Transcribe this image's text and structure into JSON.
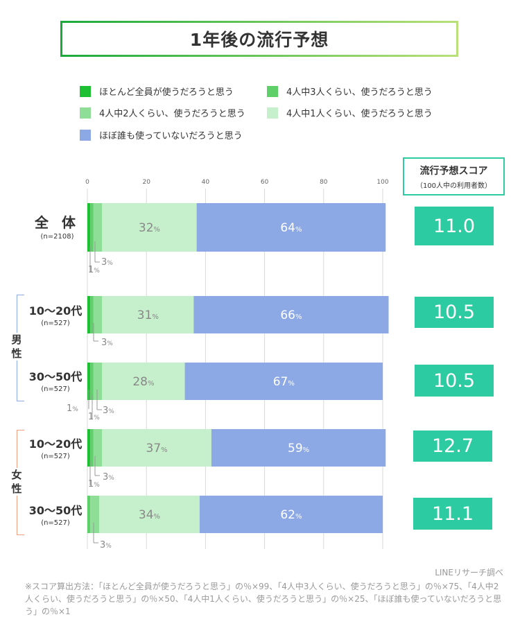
{
  "title": "1年後の流行予想",
  "legend": [
    {
      "label": "ほとんど全員が使うだろうと思う",
      "color": "#1dbf33"
    },
    {
      "label": "4人中3人くらい、使うだろうと思う",
      "color": "#5fcf6a"
    },
    {
      "label": "4人中2人くらい、使うだろうと思う",
      "color": "#8fde98"
    },
    {
      "label": "4人中1人くらい、使うだろうと思う",
      "color": "#c6efcb"
    },
    {
      "label": "ほぼ誰も使っていないだろうと思う",
      "color": "#8ca8e5"
    }
  ],
  "score_header": {
    "title": "流行予想スコア",
    "subtitle": "（100人中の利用者数）"
  },
  "groups": {
    "male": "男\n性",
    "female": "女\n性"
  },
  "rows": [
    {
      "label": "全 体",
      "n": "(n=2108)",
      "score": "11.0"
    },
    {
      "label": "10〜20代",
      "n": "(n=527)",
      "score": "10.5"
    },
    {
      "label": "30〜50代",
      "n": "(n=527)",
      "score": "10.5"
    },
    {
      "label": "10〜20代",
      "n": "(n=527)",
      "score": "12.7"
    },
    {
      "label": "30〜50代",
      "n": "(n=527)",
      "score": "11.1"
    }
  ],
  "chart_data": {
    "type": "bar",
    "orientation": "horizontal",
    "stacked": true,
    "xlim": [
      0,
      100
    ],
    "ticks": [
      "0",
      "20",
      "40",
      "60",
      "80",
      "100"
    ],
    "categories": [
      "全体",
      "男性 10〜20代",
      "男性 30〜50代",
      "女性 10〜20代",
      "女性 30〜50代"
    ],
    "series": [
      {
        "name": "ほとんど全員が使うだろうと思う",
        "values": [
          1,
          1,
          1,
          1,
          0
        ]
      },
      {
        "name": "4人中3人くらい、使うだろうと思う",
        "values": [
          1,
          1,
          1,
          1,
          1
        ]
      },
      {
        "name": "4人中2人くらい、使うだろうと思う",
        "values": [
          3,
          3,
          3,
          3,
          3
        ]
      },
      {
        "name": "4人中1人くらい、使うだろうと思う",
        "values": [
          32,
          31,
          28,
          37,
          34
        ]
      },
      {
        "name": "ほぼ誰も使っていないだろうと思う",
        "values": [
          64,
          66,
          67,
          59,
          62
        ]
      }
    ],
    "data_labels": [
      {
        "row": 0,
        "text": "32",
        "unit": "%",
        "series": 3
      },
      {
        "row": 0,
        "text": "64",
        "unit": "%",
        "series": 4
      },
      {
        "row": 1,
        "text": "31",
        "unit": "%",
        "series": 3
      },
      {
        "row": 1,
        "text": "66",
        "unit": "%",
        "series": 4
      },
      {
        "row": 2,
        "text": "28",
        "unit": "%",
        "series": 3
      },
      {
        "row": 2,
        "text": "67",
        "unit": "%",
        "series": 4
      },
      {
        "row": 3,
        "text": "37",
        "unit": "%",
        "series": 3
      },
      {
        "row": 3,
        "text": "59",
        "unit": "%",
        "series": 4
      },
      {
        "row": 4,
        "text": "34",
        "unit": "%",
        "series": 3
      },
      {
        "row": 4,
        "text": "62",
        "unit": "%",
        "series": 4
      }
    ],
    "callouts": [
      {
        "row": 0,
        "text": "3",
        "unit": "%"
      },
      {
        "row": 0,
        "text": "1",
        "unit": "%"
      },
      {
        "row": 1,
        "text": "3",
        "unit": "%"
      },
      {
        "row": 2,
        "text": "1",
        "unit": "%"
      },
      {
        "row": 2,
        "text": "3",
        "unit": "%"
      },
      {
        "row": 2,
        "text": "1",
        "unit": "%"
      },
      {
        "row": 3,
        "text": "3",
        "unit": "%"
      },
      {
        "row": 3,
        "text": "1",
        "unit": "%"
      },
      {
        "row": 4,
        "text": "3",
        "unit": "%"
      }
    ]
  },
  "source": "LINEリサーチ調べ",
  "footnote": "※スコア算出方法：「ほとんど全員が使うだろうと思う」の％×99、「4人中3人くらい、使うだろうと思う」の％×75、「4人中2人くらい、使うだろうと思う」の％×50、「4人中1人くらい、使うだろうと思う」の％×25、「ほぼ誰も使っていないだろうと思う」の％×1"
}
